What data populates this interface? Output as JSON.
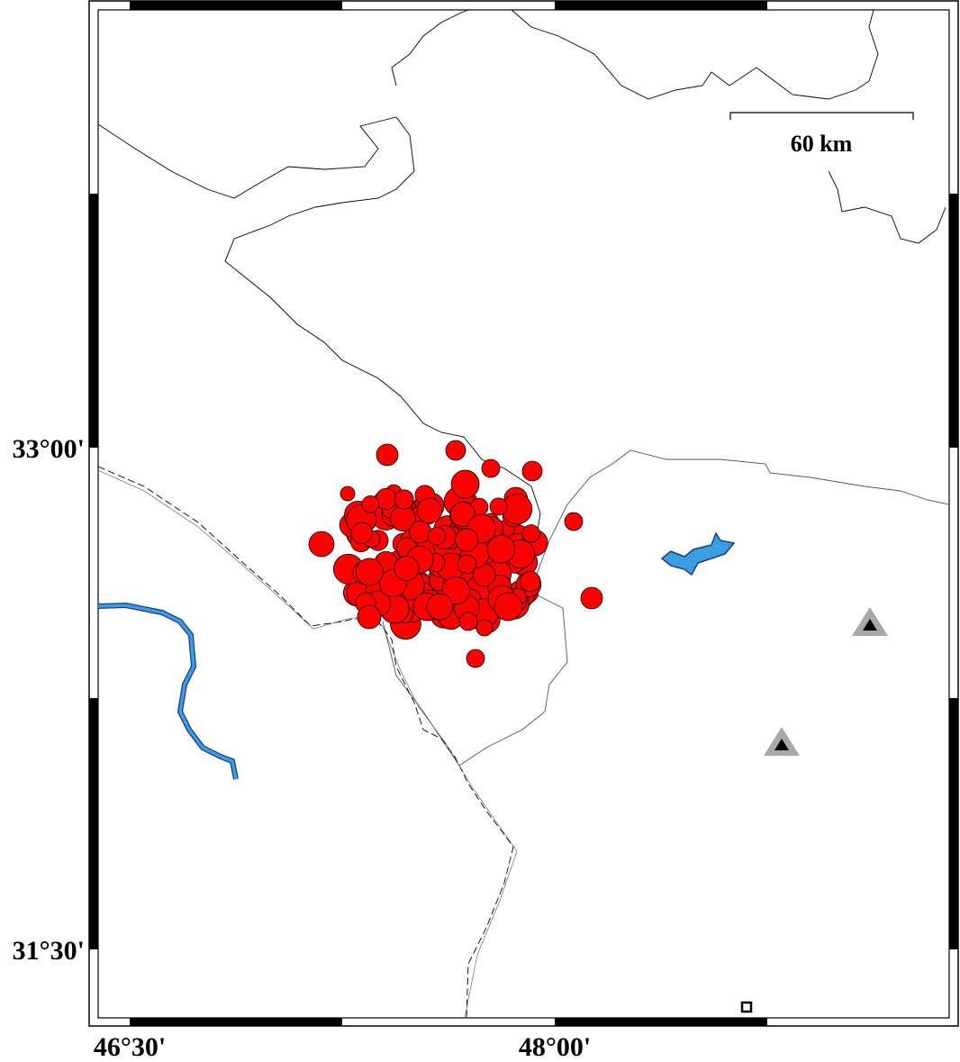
{
  "map": {
    "scale_bar": {
      "label": "60 km"
    },
    "longitude_labels": [
      "46°30'",
      "48°00'"
    ],
    "latitude_labels": [
      "33°00'",
      "31°30'"
    ],
    "colors": {
      "earthquake": "#ff0000",
      "water": "#3a9ee0",
      "station_outer": "#a8a8a8",
      "station_inner": "#000000",
      "border": "#000000"
    },
    "symbols": {
      "earthquake": "red-circle",
      "station": "triangle",
      "town": "square"
    }
  }
}
